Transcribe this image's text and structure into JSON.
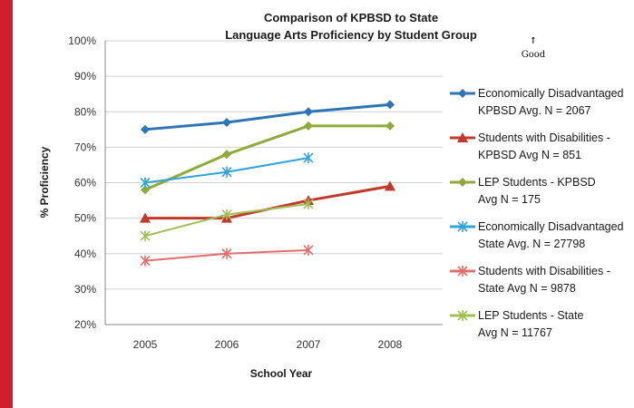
{
  "colors": {
    "frame": "#cf1f2e",
    "blue": "#2e75b6",
    "red": "#c0392b",
    "green": "#8faa3b",
    "lightblue": "#31a3d8",
    "pink": "#e36d6d",
    "lightgreen": "#9fbf55"
  },
  "annotation": {
    "arrow": "↑",
    "label": "Good"
  },
  "chart_data": {
    "type": "line",
    "title": [
      "Comparison of KPBSD to State",
      "Language Arts Proficiency by Student Group"
    ],
    "xlabel": "School Year",
    "ylabel": "% Proficiency",
    "x": [
      "2005",
      "2006",
      "2007",
      "2008"
    ],
    "ylim": [
      20,
      100
    ],
    "yticks": [
      20,
      30,
      40,
      50,
      60,
      70,
      80,
      90,
      100
    ],
    "ytick_labels": [
      "20%",
      "30%",
      "40%",
      "50%",
      "60%",
      "70%",
      "80%",
      "90%",
      "100%"
    ],
    "grid": true,
    "legend_position": "right",
    "series": [
      {
        "name": [
          "Economically Disadvantaged",
          "KPBSD Avg. N = 2067"
        ],
        "values": [
          75,
          77,
          80,
          82
        ],
        "color": "#2e75b6",
        "marker": "diamond"
      },
      {
        "name": [
          "Students with Disabilities -",
          "KPBSD Avg N = 851"
        ],
        "values": [
          50,
          50,
          55,
          59
        ],
        "color": "#c0392b",
        "marker": "triangle"
      },
      {
        "name": [
          "LEP Students - KPBSD",
          "Avg N = 175"
        ],
        "values": [
          58,
          68,
          76,
          76
        ],
        "color": "#8faa3b",
        "marker": "diamond"
      },
      {
        "name": [
          "Economically Disadvantaged",
          "State Avg. N = 27798"
        ],
        "values": [
          60,
          63,
          67,
          null
        ],
        "color": "#31a3d8",
        "marker": "star"
      },
      {
        "name": [
          "Students with Disabilities -",
          "State Avg N = 9878"
        ],
        "values": [
          38,
          40,
          41,
          null
        ],
        "color": "#e36d6d",
        "marker": "star"
      },
      {
        "name": [
          "LEP Students - State",
          "Avg N = 11767"
        ],
        "values": [
          45,
          51,
          54,
          null
        ],
        "color": "#9fbf55",
        "marker": "star"
      }
    ]
  }
}
